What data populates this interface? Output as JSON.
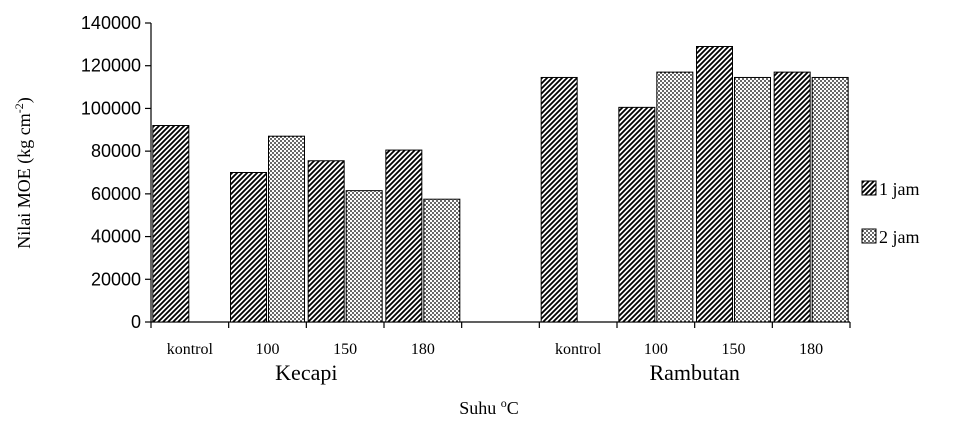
{
  "chart_data": {
    "type": "bar",
    "title": "",
    "ylabel": "Nilai MOE (kg cm",
    "ylabel_sup": "-2",
    "ylabel_close": ")",
    "xlabel": "Suhu ",
    "xlabel_sup": "o",
    "xlabel_end": "C",
    "ylim": [
      0,
      140000
    ],
    "yticks": [
      "0",
      "20000",
      "40000",
      "60000",
      "80000",
      "100000",
      "120000",
      "140000"
    ],
    "groups": [
      {
        "name": "Kecapi",
        "categories": [
          "kontrol",
          "100",
          "150",
          "180"
        ]
      },
      {
        "name": "Rambutan",
        "categories": [
          "kontrol",
          "100",
          "150",
          "180"
        ]
      }
    ],
    "series": [
      {
        "name": "1 jam",
        "values": [
          92000,
          70000,
          75500,
          80500,
          114500,
          100500,
          129000,
          117000
        ]
      },
      {
        "name": "2 jam",
        "values": [
          null,
          87000,
          61500,
          57500,
          null,
          117000,
          114500,
          114500
        ]
      }
    ],
    "legend_position": "right",
    "grid": false
  }
}
